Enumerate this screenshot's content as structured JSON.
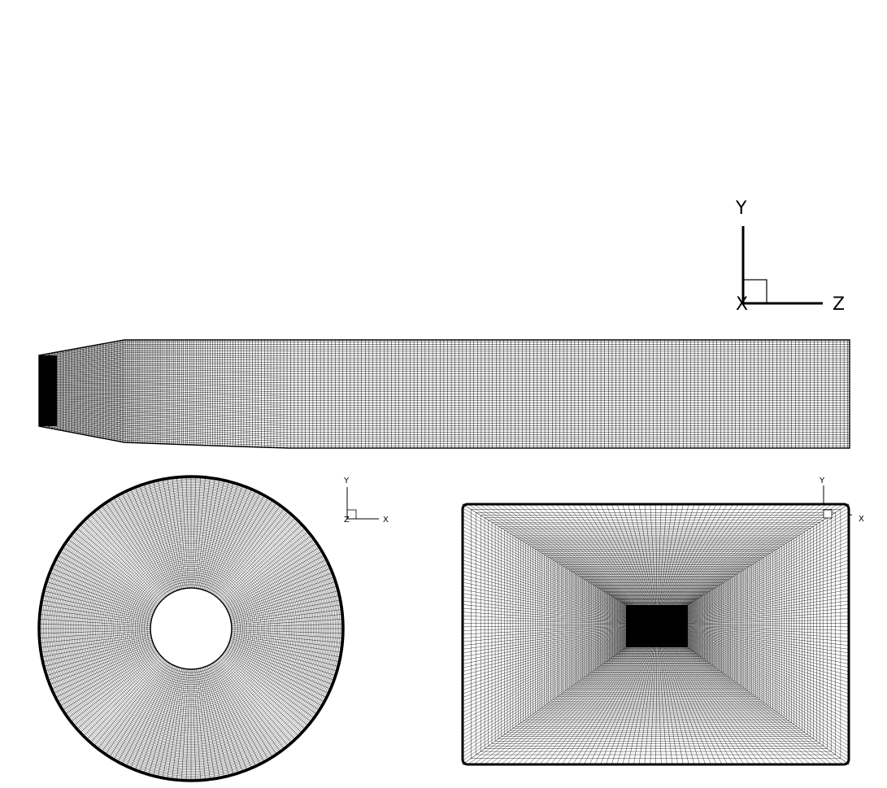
{
  "triads": {
    "main": {
      "vertical": "Y",
      "horizontal": "Z",
      "origin": "X"
    },
    "circle": {
      "vertical": "Y",
      "horizontal": "X",
      "origin": "Z"
    },
    "rectangle": {
      "vertical": "Y",
      "horizontal": "X"
    }
  },
  "views": {
    "side": {
      "name": "side-view-mesh"
    },
    "circle": {
      "name": "annular-cross-section-mesh"
    },
    "rectangle": {
      "name": "rectangular-cross-section-mesh"
    }
  },
  "colors": {
    "line": "#000000",
    "background": "#ffffff"
  }
}
